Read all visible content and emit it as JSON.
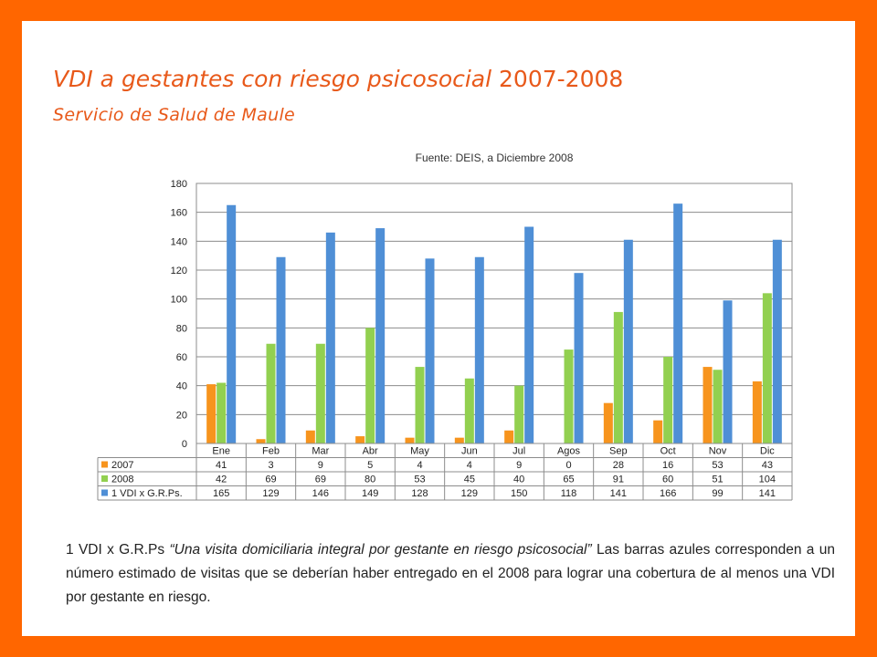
{
  "title": {
    "text": "VDI a gestantes con riesgo psicosocial",
    "years": "2007-2008"
  },
  "subtitle": "Servicio de Salud de Maule",
  "note": {
    "lead": "1 VDI x G.R.Ps",
    "definition": "“Una visita domiciliaria integral por gestante en riesgo psicosocial”",
    "body": "Las barras azules corresponden a un número estimado de visitas que se deberían haber entregado en el 2008 para lograr una cobertura de al menos una VDI por gestante en riesgo."
  },
  "colors": {
    "frame": "#ff6600",
    "title": "#e8591a",
    "series_2007": "#f7941d",
    "series_2008": "#92d050",
    "series_vdi": "#4f8fd6"
  },
  "chart_data": {
    "type": "bar",
    "title": "Fuente: DEIS, a Diciembre 2008",
    "categories": [
      "Ene",
      "Feb",
      "Mar",
      "Abr",
      "May",
      "Jun",
      "Jul",
      "Agos",
      "Sep",
      "Oct",
      "Nov",
      "Dic"
    ],
    "series": [
      {
        "name": "2007",
        "color": "#f7941d",
        "values": [
          41,
          3,
          9,
          5,
          4,
          4,
          9,
          0,
          28,
          16,
          53,
          43
        ]
      },
      {
        "name": "2008",
        "color": "#92d050",
        "values": [
          42,
          69,
          69,
          80,
          53,
          45,
          40,
          65,
          91,
          60,
          51,
          104
        ]
      },
      {
        "name": "1 VDI x G.R.Ps.",
        "color": "#4f8fd6",
        "values": [
          165,
          129,
          146,
          149,
          128,
          129,
          150,
          118,
          141,
          166,
          99,
          141
        ]
      }
    ],
    "ylim": [
      0,
      180
    ],
    "yticks": [
      0,
      20,
      40,
      60,
      80,
      100,
      120,
      140,
      160,
      180
    ],
    "grid": true,
    "legend": "data-table-below"
  }
}
